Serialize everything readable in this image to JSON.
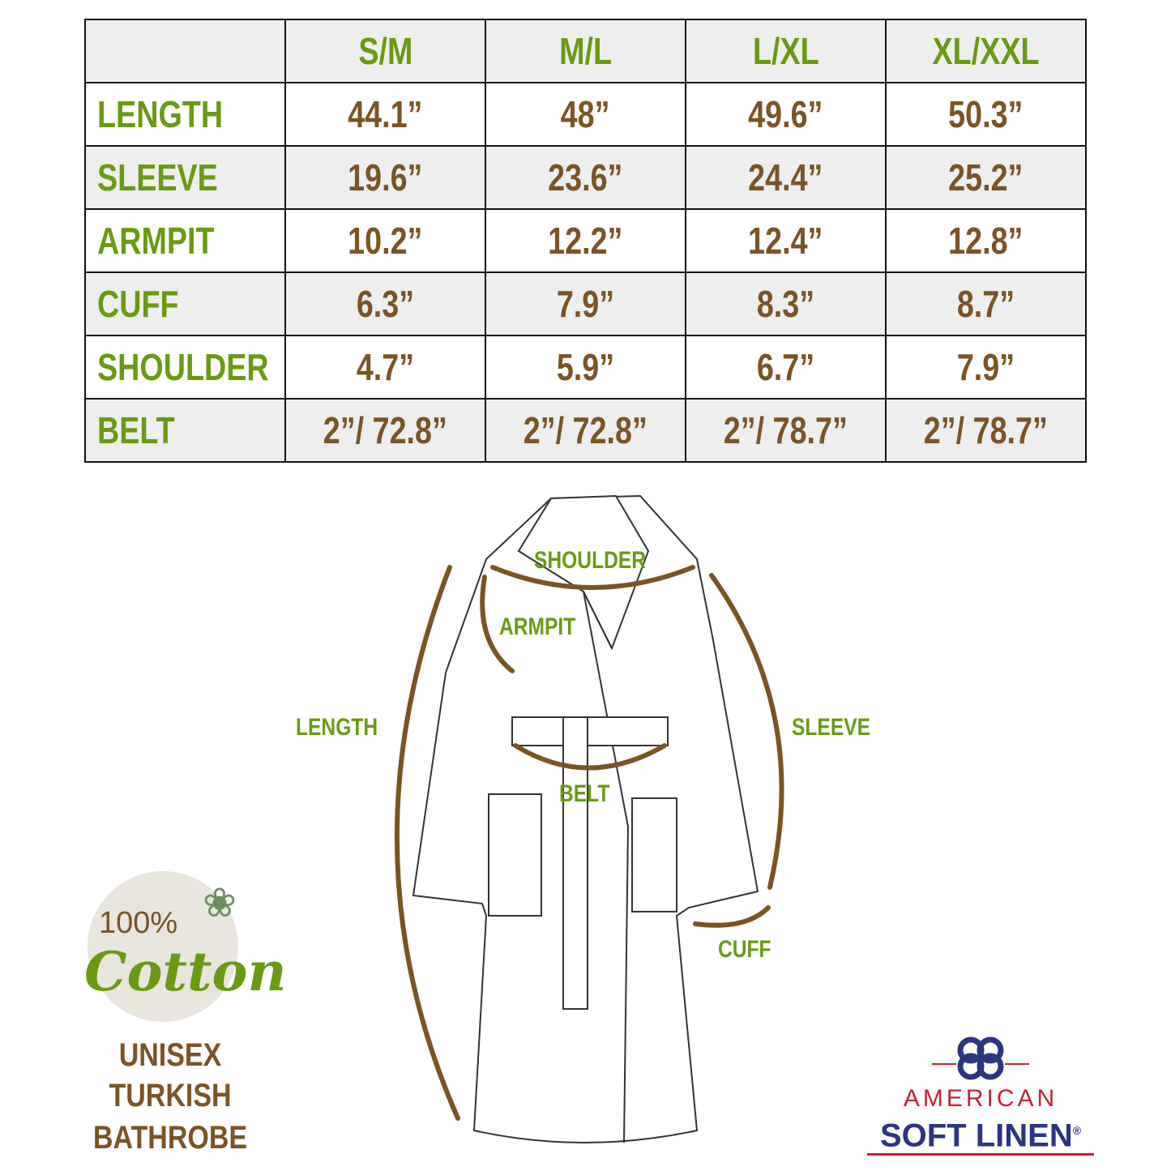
{
  "size_chart": {
    "columns": [
      "",
      "S/M",
      "M/L",
      "L/XL",
      "XL/XXL"
    ],
    "rows": [
      {
        "label": "LENGTH",
        "values": [
          "44.1”",
          "48”",
          "49.6”",
          "50.3”"
        ]
      },
      {
        "label": "SLEEVE",
        "values": [
          "19.6”",
          "23.6”",
          "24.4”",
          "25.2”"
        ]
      },
      {
        "label": "ARMPIT",
        "values": [
          "10.2”",
          "12.2”",
          "12.4”",
          "12.8”"
        ]
      },
      {
        "label": "CUFF",
        "values": [
          "6.3”",
          "7.9”",
          "8.3”",
          "8.7”"
        ]
      },
      {
        "label": "SHOULDER",
        "values": [
          "4.7”",
          "5.9”",
          "6.7”",
          "7.9”"
        ]
      },
      {
        "label": "BELT",
        "values": [
          "2”/ 72.8”",
          "2”/ 72.8”",
          "2”/ 78.7”",
          "2”/ 78.7”"
        ]
      }
    ]
  },
  "diagram": {
    "labels": {
      "shoulder": "SHOULDER",
      "armpit": "ARMPIT",
      "length": "LENGTH",
      "sleeve": "SLEEVE",
      "belt": "BELT",
      "cuff": "CUFF"
    }
  },
  "badge": {
    "percent": "100%",
    "material": "Cotton"
  },
  "product": {
    "line1": "UNISEX",
    "line2": "TURKISH",
    "line3": "BATHROBE"
  },
  "logo": {
    "top": "AMERICAN",
    "bottom": "SOFT LINEN",
    "mark": "®"
  },
  "colors": {
    "green": "#6a9a14",
    "brown": "#7b5424",
    "navy": "#2b3580",
    "red": "#c8202e",
    "row_gray": "#eeeeee"
  }
}
